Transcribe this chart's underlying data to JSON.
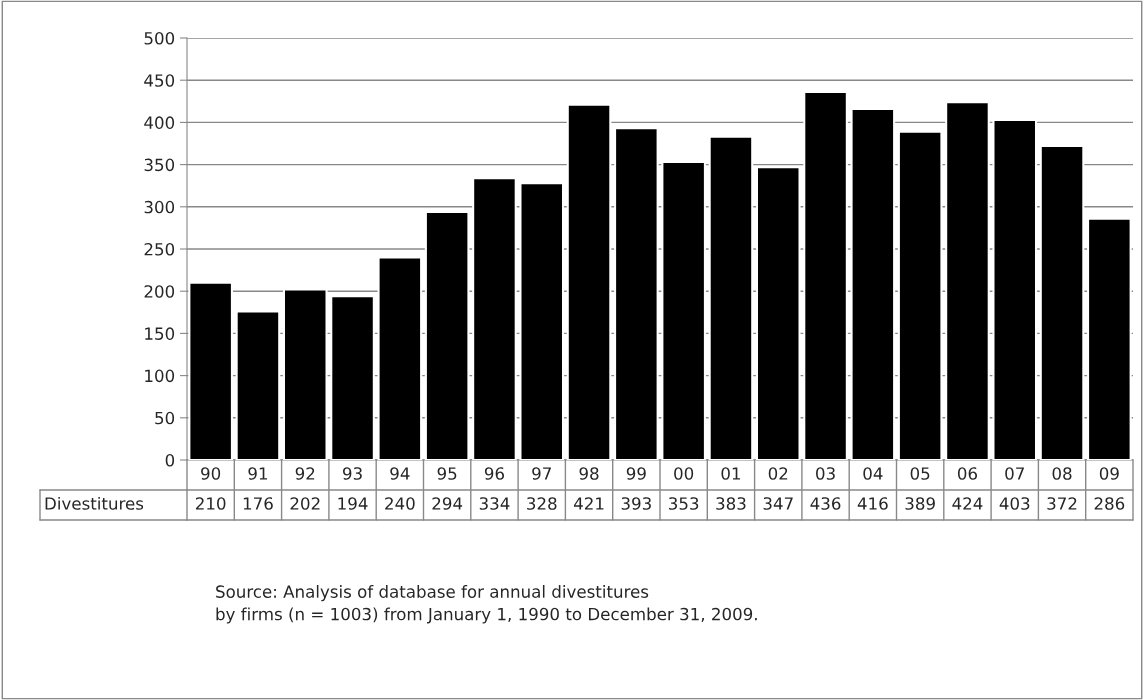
{
  "chart_data": {
    "type": "bar",
    "categories": [
      "90",
      "91",
      "92",
      "93",
      "94",
      "95",
      "96",
      "97",
      "98",
      "99",
      "00",
      "01",
      "02",
      "03",
      "04",
      "05",
      "06",
      "07",
      "08",
      "09"
    ],
    "series": [
      {
        "name": "Divestitures",
        "color": "#000000",
        "values": [
          210,
          176,
          202,
          194,
          240,
          294,
          334,
          328,
          421,
          393,
          353,
          383,
          347,
          436,
          416,
          389,
          424,
          403,
          372,
          286
        ]
      }
    ],
    "ylim": [
      0,
      500
    ],
    "yticks": [
      0,
      50,
      100,
      150,
      200,
      250,
      300,
      350,
      400,
      450,
      500
    ],
    "grid": "y",
    "legend": false,
    "data_labels": true,
    "annotations": [
      "Source: Analysis of database for annual divestitures\nby firms (n = 1003) from January 1, 1990 to December 31, 2009."
    ]
  }
}
